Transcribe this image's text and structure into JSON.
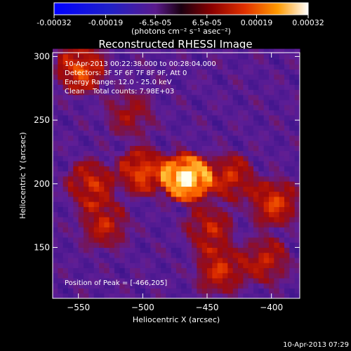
{
  "chart_data": {
    "type": "heatmap",
    "title": "Reconstructed RHESSI Image",
    "xlabel": "Heliocentric X (arcsec)",
    "ylabel": "Heliocentric Y (arcsec)",
    "xlim": [
      -570,
      -378
    ],
    "ylim": [
      110,
      303
    ],
    "x_ticks": [
      -550,
      -500,
      -450,
      -400
    ],
    "y_ticks": [
      150,
      200,
      250,
      300
    ],
    "colorbar": {
      "ticks": [
        "-0.00032",
        "-0.00019",
        "-6.5e-05",
        "6.5e-05",
        "0.00019",
        "0.00032"
      ],
      "values": [
        -0.00032,
        -0.00019,
        -6.5e-05,
        6.5e-05,
        0.00019,
        0.00032
      ],
      "label": "(photons cm⁻² s⁻¹ asec⁻²)"
    },
    "annotations": {
      "time_range": "10-Apr-2013 00:22:38.000 to 00:28:04.000",
      "detectors": "Detectors: 3F 5F 6F 7F 8F 9F, Att 0",
      "energy": "Energy Range: 12.0 - 25.0 keV",
      "clean": "Clean",
      "total_counts": "Total counts: 7.98E+03",
      "peak": "Position of Peak = [-466,205]"
    },
    "peak": [
      -466,
      205
    ],
    "sources": [
      {
        "x": -466,
        "y": 205,
        "intensity": 1.0
      },
      {
        "x": -500,
        "y": 210,
        "intensity": 0.55
      },
      {
        "x": -540,
        "y": 200,
        "intensity": 0.45
      },
      {
        "x": -530,
        "y": 168,
        "intensity": 0.4
      },
      {
        "x": -448,
        "y": 165,
        "intensity": 0.4
      },
      {
        "x": -432,
        "y": 205,
        "intensity": 0.45
      },
      {
        "x": -398,
        "y": 185,
        "intensity": 0.5
      },
      {
        "x": -440,
        "y": 132,
        "intensity": 0.45
      },
      {
        "x": -405,
        "y": 140,
        "intensity": 0.4
      },
      {
        "x": -548,
        "y": 290,
        "intensity": 0.55
      },
      {
        "x": -510,
        "y": 255,
        "intensity": 0.3
      }
    ]
  },
  "footer": {
    "timestamp": "10-Apr-2013 07:29"
  }
}
